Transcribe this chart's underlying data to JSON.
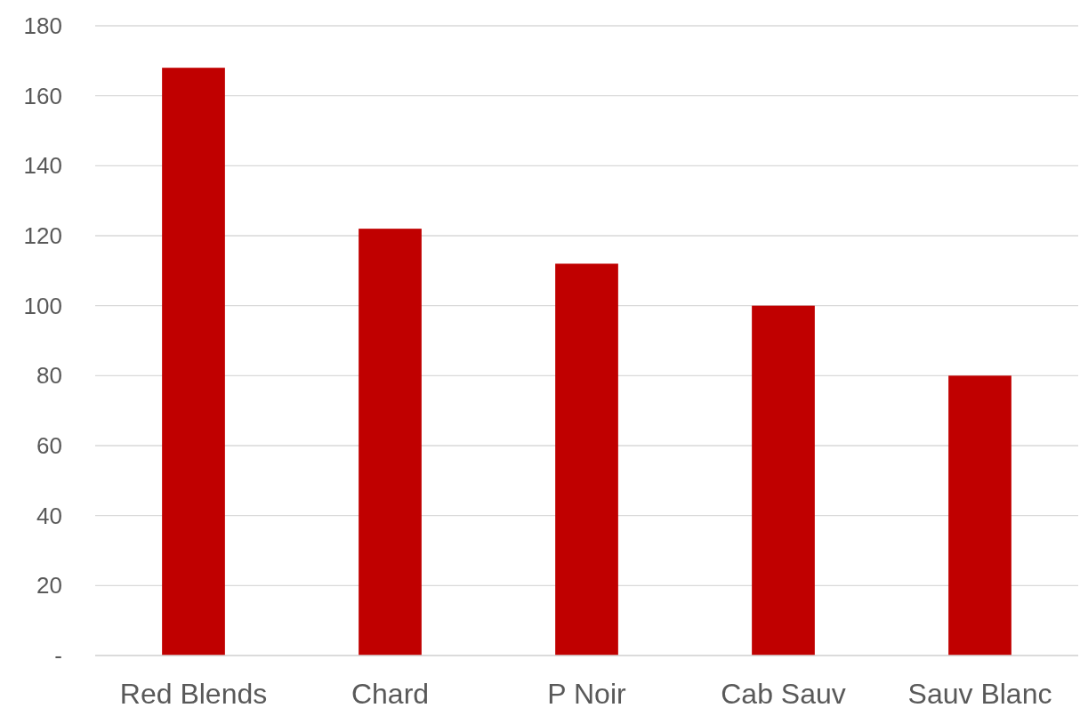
{
  "chart_data": {
    "type": "bar",
    "categories": [
      "Red Blends",
      "Chard",
      "P Noir",
      "Cab Sauv",
      "Sauv Blanc"
    ],
    "values": [
      168,
      122,
      112,
      100,
      80
    ],
    "color": "#c00000",
    "ylim": [
      0,
      180
    ],
    "yticks": [
      {
        "value": 0,
        "label": "-"
      },
      20,
      40,
      60,
      80,
      100,
      120,
      140,
      160,
      180
    ],
    "grid": "y"
  }
}
